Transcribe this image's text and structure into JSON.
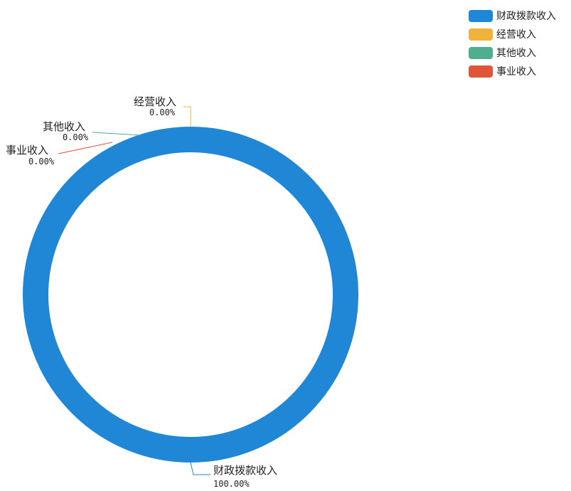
{
  "chart_data": {
    "type": "pie",
    "variant": "donut",
    "title": "",
    "slices": [
      {
        "name": "财政拨款收入",
        "value": 100.0,
        "percent_label": "100.00%",
        "color": "#1f87d6"
      },
      {
        "name": "经营收入",
        "value": 0.0,
        "percent_label": "0.00%",
        "color": "#f0b23a"
      },
      {
        "name": "其他收入",
        "value": 0.0,
        "percent_label": "0.00%",
        "color": "#4fae8e"
      },
      {
        "name": "事业收入",
        "value": 0.0,
        "percent_label": "0.00%",
        "color": "#e0553a"
      }
    ],
    "legend": {
      "position": "top-right",
      "items": [
        "财政拨款收入",
        "经营收入",
        "其他收入",
        "事业收入"
      ]
    }
  }
}
